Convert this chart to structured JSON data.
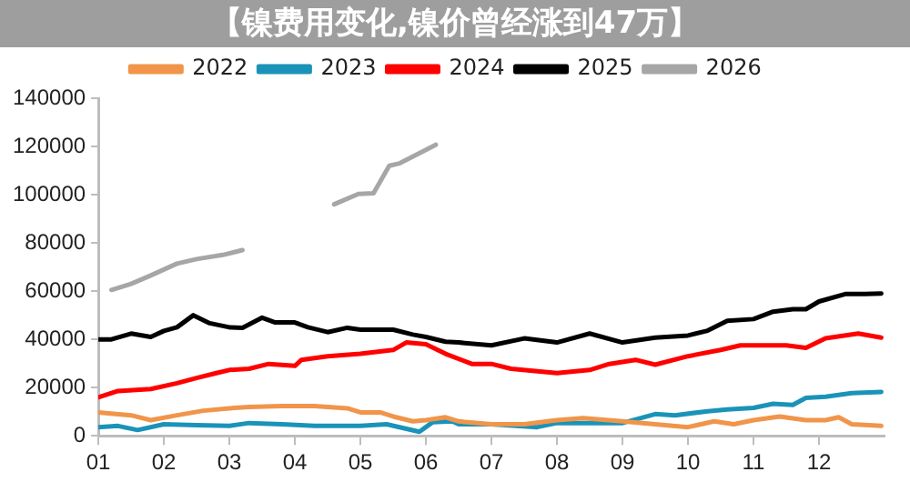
{
  "chart_data": {
    "type": "line",
    "title": "【镍费用变化,镍价曾经涨到47万】",
    "legend": "top",
    "grid": false,
    "marker": "none",
    "line_style": "solid",
    "xlim": [
      1,
      13
    ],
    "xticks": [
      {
        "value": 1,
        "label": "01"
      },
      {
        "value": 2,
        "label": "02"
      },
      {
        "value": 3,
        "label": "03"
      },
      {
        "value": 4,
        "label": "04"
      },
      {
        "value": 5,
        "label": "05"
      },
      {
        "value": 6,
        "label": "06"
      },
      {
        "value": 7,
        "label": "07"
      },
      {
        "value": 8,
        "label": "08"
      },
      {
        "value": 9,
        "label": "09"
      },
      {
        "value": 10,
        "label": "10"
      },
      {
        "value": 11,
        "label": "11"
      },
      {
        "value": 12,
        "label": "12"
      }
    ],
    "ylim": [
      0,
      140000
    ],
    "yticks": [
      0,
      20000,
      40000,
      60000,
      80000,
      100000,
      120000,
      140000
    ],
    "series": [
      {
        "name": "2022",
        "color": "#f0954a",
        "x": [
          1,
          1.5,
          1.8,
          2.2,
          2.6,
          3,
          3.3,
          3.8,
          4.3,
          4.8,
          5,
          5.3,
          5.5,
          5.8,
          6,
          6.3,
          6.5,
          7,
          7.5,
          8,
          8.4,
          9,
          9.5,
          10,
          10.4,
          10.7,
          11,
          11.4,
          11.8,
          12.1,
          12.3,
          12.5,
          12.95
        ],
        "values": [
          9700,
          8500,
          6500,
          8500,
          10400,
          11400,
          12000,
          12300,
          12300,
          11400,
          9700,
          9700,
          8000,
          6000,
          6500,
          7700,
          6000,
          4800,
          4800,
          6500,
          7300,
          6000,
          4800,
          3600,
          6000,
          4800,
          6500,
          8000,
          6500,
          6500,
          7700,
          4800,
          4100
        ]
      },
      {
        "name": "2023",
        "color": "#1a93b8",
        "x": [
          1,
          1.3,
          1.6,
          2,
          2.5,
          3,
          3.3,
          3.8,
          4.3,
          5,
          5.4,
          5.9,
          6.1,
          6.4,
          6.5,
          7,
          7.7,
          8,
          9,
          9.5,
          9.8,
          10.3,
          10.6,
          11,
          11.3,
          11.6,
          11.8,
          12.1,
          12.5,
          12.95
        ],
        "values": [
          3600,
          4100,
          2400,
          4800,
          4400,
          4100,
          5300,
          4800,
          4100,
          4100,
          4800,
          1700,
          5600,
          6000,
          4800,
          4800,
          3600,
          5300,
          5300,
          9000,
          8500,
          10200,
          10900,
          11600,
          13300,
          12800,
          15700,
          16200,
          17700,
          18200
        ]
      },
      {
        "name": "2024",
        "color": "#ff0000",
        "x": [
          1,
          1.3,
          1.8,
          2.2,
          2.5,
          2.8,
          3,
          3.3,
          3.6,
          4,
          4.1,
          4.5,
          5,
          5.5,
          5.7,
          6,
          6.3,
          6.7,
          7,
          7.3,
          8,
          8.5,
          8.8,
          9.2,
          9.5,
          10,
          10.5,
          10.8,
          11.5,
          11.8,
          12.1,
          12.6,
          12.95
        ],
        "values": [
          16000,
          18600,
          19400,
          21800,
          24000,
          26000,
          27300,
          27800,
          29800,
          29000,
          31500,
          33000,
          34000,
          35600,
          38700,
          38000,
          34000,
          29800,
          29800,
          27800,
          26000,
          27300,
          29800,
          31500,
          29500,
          33000,
          35600,
          37500,
          37500,
          36500,
          40400,
          42400,
          40700
        ]
      },
      {
        "name": "2025",
        "color": "#000000",
        "x": [
          1,
          1.2,
          1.5,
          1.8,
          2,
          2.2,
          2.45,
          2.7,
          3,
          3.2,
          3.5,
          3.7,
          4,
          4.2,
          4.5,
          4.8,
          5,
          5.5,
          5.8,
          6,
          6.3,
          6.5,
          7,
          7.5,
          8,
          8.5,
          9,
          9.5,
          10,
          10.3,
          10.6,
          11,
          11.3,
          11.6,
          11.8,
          12,
          12.4,
          12.7,
          12.95
        ],
        "values": [
          40000,
          40000,
          42400,
          41000,
          43500,
          45000,
          50000,
          46700,
          45000,
          44800,
          49000,
          47000,
          47000,
          45000,
          43000,
          44800,
          44000,
          44000,
          42000,
          41000,
          39000,
          38700,
          37500,
          40400,
          38700,
          42400,
          38700,
          40700,
          41600,
          43600,
          47700,
          48400,
          51500,
          52500,
          52500,
          55700,
          58800,
          58800,
          59000
        ]
      },
      {
        "name": "2026",
        "color": "#a6a6a6",
        "x": [
          1.2,
          1.5,
          1.8,
          2.2,
          2.5,
          2.9,
          3.2,
          3.6,
          4.2,
          4.6,
          4.97,
          5.2,
          5.44,
          5.6,
          6.15
        ],
        "values": [
          60500,
          63000,
          66500,
          71400,
          73300,
          75000,
          77000,
          null,
          null,
          96000,
          100300,
          100600,
          112000,
          113000,
          120700
        ]
      }
    ]
  }
}
